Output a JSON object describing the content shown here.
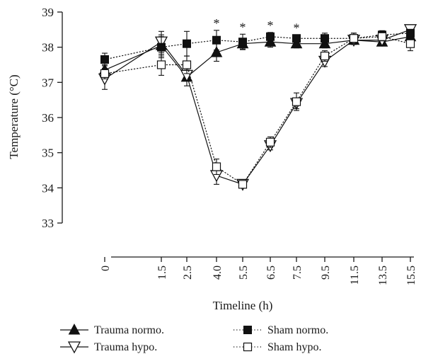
{
  "chart_data": {
    "type": "line",
    "ylabel": "Temperature (°C)",
    "xlabel": "Timeline (h)",
    "ylim": [
      33,
      39
    ],
    "yticks": [
      33,
      34,
      35,
      36,
      37,
      38,
      39
    ],
    "categories": [
      "0",
      "1.5",
      "2.5",
      "4.0",
      "5.5",
      "6.5",
      "7.5",
      "9.5",
      "11.5",
      "13.5",
      "15.5"
    ],
    "significance_marker": "*",
    "significant_categories": [
      "4.0",
      "5.5",
      "6.5",
      "7.5"
    ],
    "series": [
      {
        "name": "Trauma normo.",
        "marker": "filled-triangle-up",
        "line": "solid",
        "values": [
          37.35,
          38.05,
          37.15,
          37.85,
          38.1,
          38.15,
          38.1,
          38.1,
          38.2,
          38.15,
          38.3
        ],
        "errors": [
          0.15,
          0.3,
          0.25,
          0.25,
          0.15,
          0.15,
          0.12,
          0.12,
          0.12,
          0.1,
          0.1
        ]
      },
      {
        "name": "Trauma hypo.",
        "marker": "open-triangle-down",
        "line": "solid",
        "values": [
          37.1,
          38.15,
          37.2,
          34.35,
          34.1,
          35.2,
          36.4,
          37.6,
          38.2,
          38.2,
          38.5
        ],
        "errors": [
          0.3,
          0.3,
          0.15,
          0.25,
          0.1,
          0.12,
          0.15,
          0.15,
          0.12,
          0.1,
          0.12
        ]
      },
      {
        "name": "Sham normo.",
        "marker": "filled-square",
        "line": "dotted",
        "values": [
          37.65,
          38.0,
          38.1,
          38.2,
          38.15,
          38.3,
          38.25,
          38.25,
          38.25,
          38.35,
          38.4
        ],
        "errors": [
          0.18,
          0.3,
          0.35,
          0.28,
          0.22,
          0.12,
          0.1,
          0.15,
          0.15,
          0.12,
          0.1
        ]
      },
      {
        "name": "Sham hypo.",
        "marker": "open-square",
        "line": "dotted",
        "values": [
          37.25,
          37.5,
          37.5,
          34.6,
          34.1,
          35.3,
          36.45,
          37.75,
          38.25,
          38.3,
          38.1
        ],
        "errors": [
          0.15,
          0.3,
          0.25,
          0.22,
          0.1,
          0.15,
          0.25,
          0.15,
          0.15,
          0.12,
          0.2
        ]
      }
    ],
    "legend": {
      "placement": "bottom",
      "items": [
        {
          "label": "Trauma normo."
        },
        {
          "label": "Sham normo."
        },
        {
          "label": "Trauma hypo."
        },
        {
          "label": "Sham hypo."
        }
      ]
    }
  }
}
